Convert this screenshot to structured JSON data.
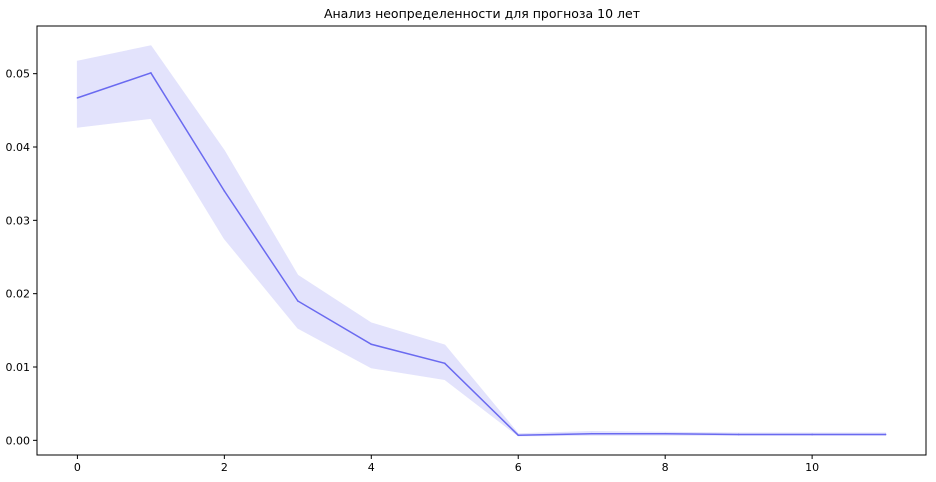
{
  "chart_data": {
    "type": "line",
    "title": "Анализ неопределенности для прогноза 10 лет",
    "xlabel": "",
    "ylabel": "",
    "xlim": [
      -0.55,
      11.55
    ],
    "ylim": [
      -0.002,
      0.0565
    ],
    "x_ticks": [
      0,
      2,
      4,
      6,
      8,
      10
    ],
    "y_ticks": [
      0.0,
      0.01,
      0.02,
      0.03,
      0.04,
      0.05
    ],
    "y_tick_labels": [
      "0.00",
      "0.01",
      "0.02",
      "0.03",
      "0.04",
      "0.05"
    ],
    "grid": false,
    "legend": "none",
    "series": [
      {
        "x": [
          0,
          1,
          2,
          3,
          4,
          5,
          6,
          7,
          8,
          9,
          10,
          11
        ],
        "values": [
          0.0467,
          0.0501,
          0.034,
          0.019,
          0.0131,
          0.0105,
          0.0007,
          0.0009,
          0.0009,
          0.0008,
          0.0008,
          0.0008
        ],
        "lower": [
          0.0427,
          0.0439,
          0.0275,
          0.0153,
          0.0099,
          0.0083,
          0.0006,
          0.0007,
          0.0007,
          0.0007,
          0.0007,
          0.0007
        ],
        "upper": [
          0.0517,
          0.0538,
          0.0395,
          0.0225,
          0.016,
          0.013,
          0.0009,
          0.0012,
          0.0011,
          0.001,
          0.001,
          0.001
        ],
        "color": "#6a6af0",
        "band_color": "#e3e3fc"
      }
    ]
  }
}
